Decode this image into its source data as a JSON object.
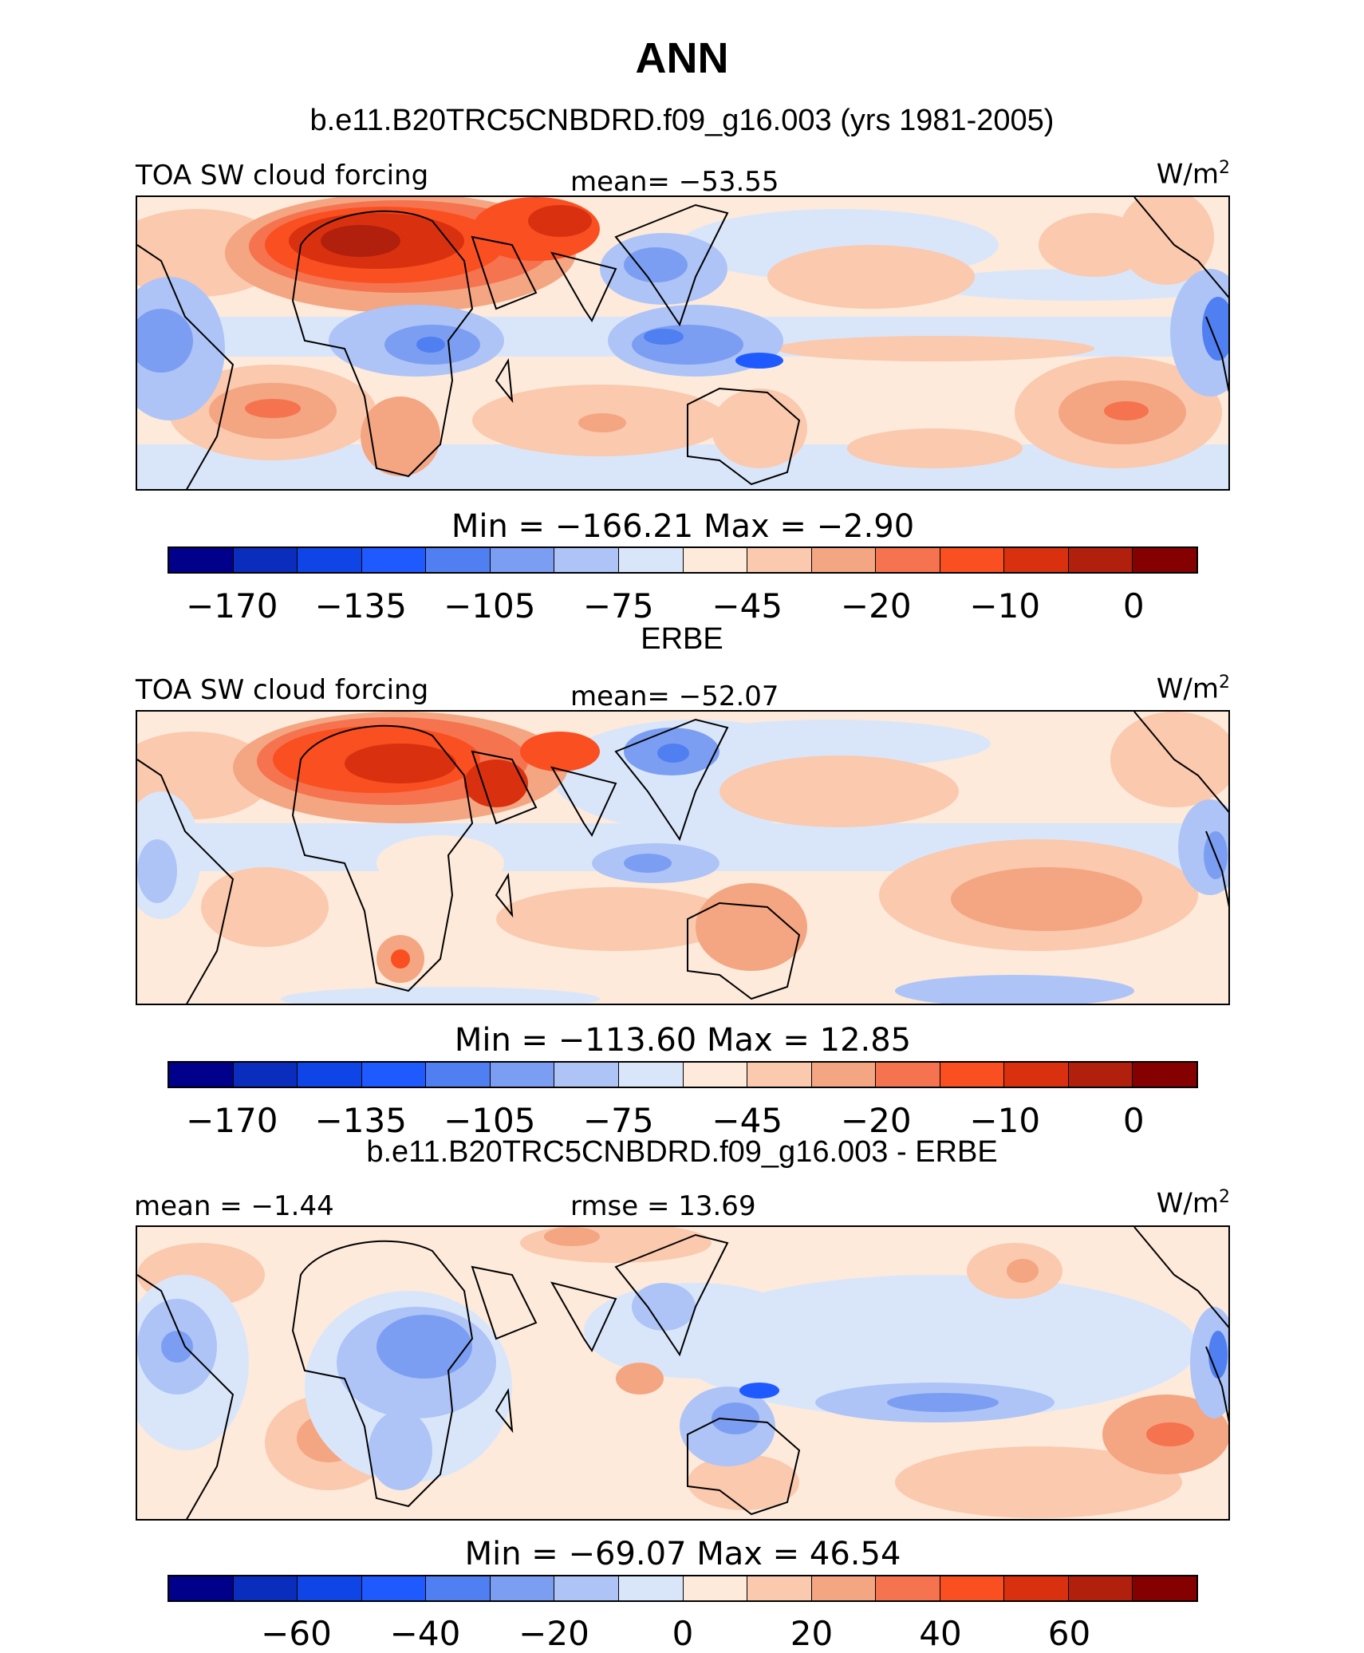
{
  "title": "ANN",
  "panels": [
    {
      "subtitle": "b.e11.B20TRC5CNBDRD.f09_g16.003 (yrs 1981-2005)",
      "left_label": "TOA SW cloud forcing",
      "center_label": "mean= −53.55",
      "units": "W/m",
      "units_sup": "2",
      "minmax": "Min  =  −166.21  Max  =   −2.90",
      "colorbar_ticks": [
        "−170",
        "−135",
        "−105",
        "−75",
        "−45",
        "−20",
        "−10",
        "0"
      ],
      "stats": {
        "mean": -53.55,
        "min": -166.21,
        "max": -2.9
      }
    },
    {
      "subtitle": "ERBE",
      "left_label": "TOA SW cloud forcing",
      "center_label": "mean= −52.07",
      "units": "W/m",
      "units_sup": "2",
      "minmax": "Min  =  −113.60  Max  =   12.85",
      "colorbar_ticks": [
        "−170",
        "−135",
        "−105",
        "−75",
        "−45",
        "−20",
        "−10",
        "0"
      ],
      "stats": {
        "mean": -52.07,
        "min": -113.6,
        "max": 12.85
      }
    },
    {
      "subtitle": "b.e11.B20TRC5CNBDRD.f09_g16.003 - ERBE",
      "left_label": "mean =   −1.44",
      "center_label": "rmse =   13.69",
      "units": "W/m",
      "units_sup": "2",
      "minmax": "Min  =  −69.07  Max  =   46.54",
      "colorbar_ticks": [
        "−60",
        "−40",
        "−20",
        "0",
        "20",
        "40",
        "60"
      ],
      "stats": {
        "mean": -1.44,
        "rmse": 13.69,
        "min": -69.07,
        "max": 46.54
      }
    }
  ],
  "colorbar_colors": [
    "#00008b",
    "#0a2dbd",
    "#0f45e6",
    "#1e5aff",
    "#4f7ff0",
    "#7c9ef2",
    "#aec4f7",
    "#d9e6fa",
    "#fdeadb",
    "#fac9ae",
    "#f4a582",
    "#f5734f",
    "#fa4f20",
    "#d93110",
    "#b0200d",
    "#850000"
  ]
}
